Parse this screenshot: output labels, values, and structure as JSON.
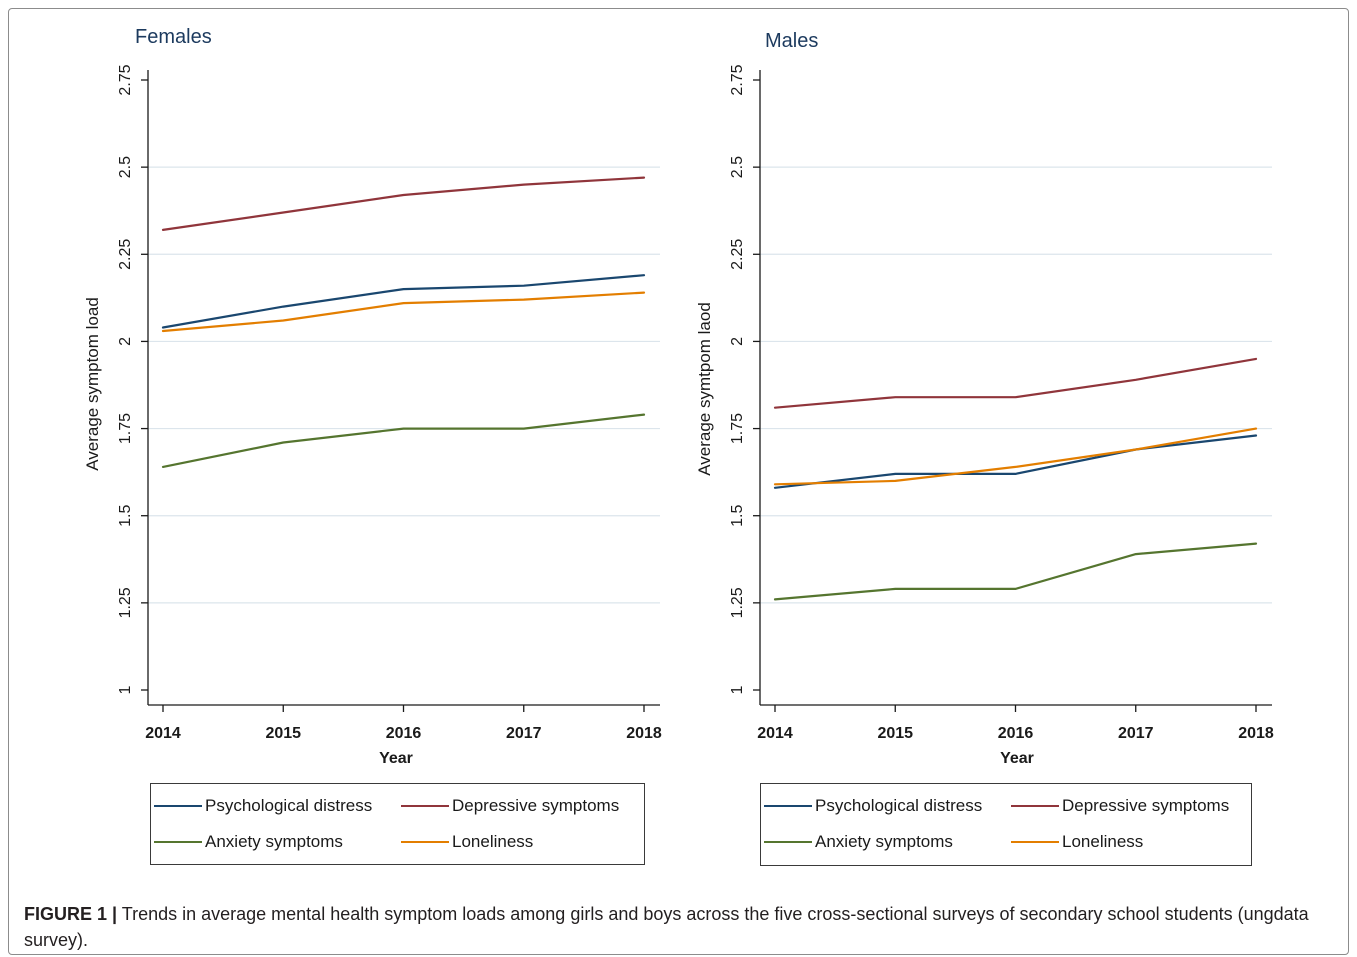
{
  "caption": {
    "label": "FIGURE 1 |",
    "text": "Trends in average mental health symptom loads among girls and boys across the five cross-sectional surveys of secondary school students (ungdata survey)."
  },
  "colors": {
    "title": "#1c3a5e",
    "gridline": "#dce5ec"
  },
  "chart_data": [
    {
      "type": "line",
      "title": "Females",
      "xlabel": "Year",
      "ylabel": "Average symptom load",
      "x": [
        2014,
        2015,
        2016,
        2017,
        2018
      ],
      "ylim": [
        1,
        2.75
      ],
      "yticks": [
        1,
        1.25,
        1.5,
        1.75,
        2,
        2.25,
        2.5,
        2.75
      ],
      "grid": true,
      "legend_position": "bottom",
      "series": [
        {
          "name": "Psychological distress",
          "color": "#1a476f",
          "values": [
            2.04,
            2.1,
            2.15,
            2.16,
            2.19
          ]
        },
        {
          "name": "Depressive symptoms",
          "color": "#90353b",
          "values": [
            2.32,
            2.37,
            2.42,
            2.45,
            2.47
          ]
        },
        {
          "name": "Anxiety symptoms",
          "color": "#55752f",
          "values": [
            1.64,
            1.71,
            1.75,
            1.75,
            1.79
          ]
        },
        {
          "name": "Loneliness",
          "color": "#e37e00",
          "values": [
            2.03,
            2.06,
            2.11,
            2.12,
            2.14
          ]
        }
      ]
    },
    {
      "type": "line",
      "title": "Males",
      "xlabel": "Year",
      "ylabel": "Average symtpom laod",
      "x": [
        2014,
        2015,
        2016,
        2017,
        2018
      ],
      "ylim": [
        1,
        2.75
      ],
      "yticks": [
        1,
        1.25,
        1.5,
        1.75,
        2,
        2.25,
        2.5,
        2.75
      ],
      "grid": true,
      "legend_position": "bottom",
      "series": [
        {
          "name": "Psychological distress",
          "color": "#1a476f",
          "values": [
            1.58,
            1.62,
            1.62,
            1.69,
            1.73
          ]
        },
        {
          "name": "Depressive symptoms",
          "color": "#90353b",
          "values": [
            1.81,
            1.84,
            1.84,
            1.89,
            1.95
          ]
        },
        {
          "name": "Anxiety symptoms",
          "color": "#55752f",
          "values": [
            1.26,
            1.29,
            1.29,
            1.39,
            1.42
          ]
        },
        {
          "name": "Loneliness",
          "color": "#e37e00",
          "values": [
            1.59,
            1.6,
            1.64,
            1.69,
            1.75
          ]
        }
      ]
    }
  ]
}
